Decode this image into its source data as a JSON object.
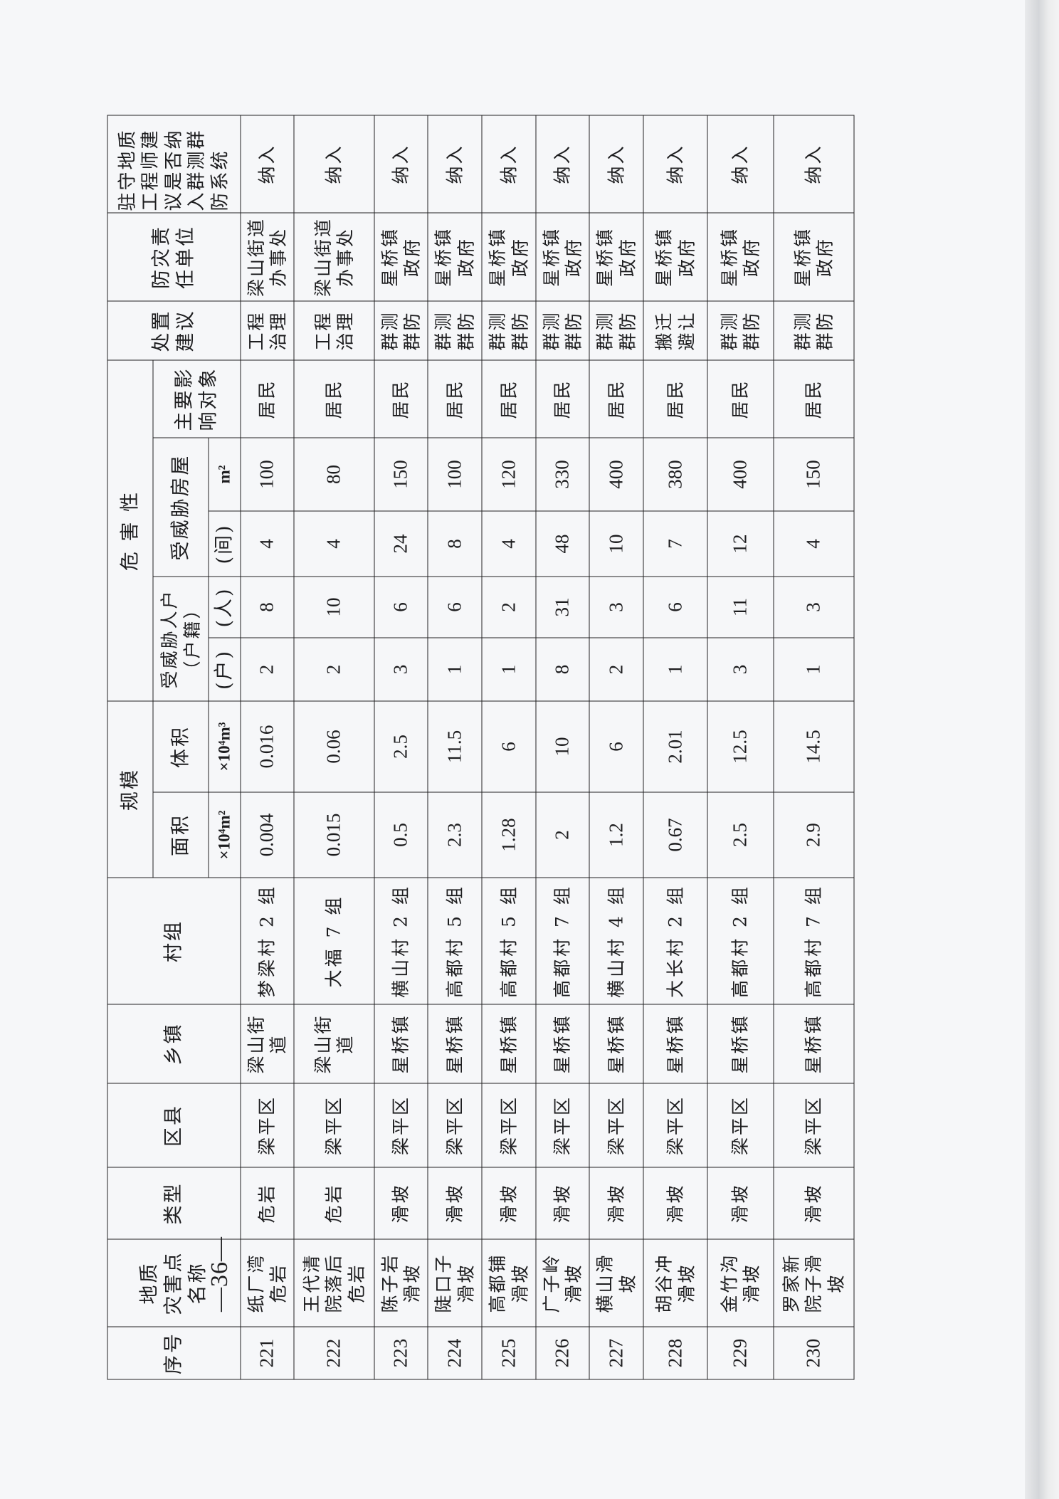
{
  "header": {
    "seq": "序号",
    "name": "地质\n灾害点\n名称",
    "type": "类型",
    "county": "区县",
    "town": "乡镇",
    "village": "村组",
    "scale": "规模",
    "area": "面积",
    "volume": "体积",
    "area_unit": "×10⁴m²",
    "volume_unit": "×10⁴m³",
    "hazard": "危 害 性",
    "threat_people": "受威胁人户\n（户籍）",
    "households_unit": "(户)",
    "persons_unit": "(人)",
    "threat_houses": "受威胁房屋",
    "rooms_unit": "(间)",
    "house_area_unit": "m²",
    "affected": "主要影\n响对象",
    "measure": "处置\n建议",
    "responsible": "防灾责\n任单位",
    "included": "驻守地质\n工程师建\n议是否纳\n入群测群\n防系统"
  },
  "rows": [
    {
      "seq": "221",
      "name": "纸厂湾\n危岩",
      "type": "危岩",
      "county": "梁平区",
      "town": "梁山街\n道",
      "village": "梦梁村 2 组",
      "area": "0.004",
      "volume": "0.016",
      "households": "2",
      "persons": "8",
      "rooms": "4",
      "house_area": "100",
      "affected": "居民",
      "measure": "工程\n治理",
      "responsible": "梁山街道\n办事处",
      "included": "纳入"
    },
    {
      "seq": "222",
      "name": "王代清\n院落后\n危岩",
      "type": "危岩",
      "county": "梁平区",
      "town": "梁山街\n道",
      "village": "大福 7 组",
      "area": "0.015",
      "volume": "0.06",
      "households": "2",
      "persons": "10",
      "rooms": "4",
      "house_area": "80",
      "affected": "居民",
      "measure": "工程\n治理",
      "responsible": "梁山街道\n办事处",
      "included": "纳入"
    },
    {
      "seq": "223",
      "name": "陈子岩\n滑坡",
      "type": "滑坡",
      "county": "梁平区",
      "town": "星桥镇",
      "village": "横山村 2 组",
      "area": "0.5",
      "volume": "2.5",
      "households": "3",
      "persons": "6",
      "rooms": "24",
      "house_area": "150",
      "affected": "居民",
      "measure": "群测\n群防",
      "responsible": "星桥镇\n政府",
      "included": "纳入"
    },
    {
      "seq": "224",
      "name": "陡口子\n滑坡",
      "type": "滑坡",
      "county": "梁平区",
      "town": "星桥镇",
      "village": "高都村 5 组",
      "area": "2.3",
      "volume": "11.5",
      "households": "1",
      "persons": "6",
      "rooms": "8",
      "house_area": "100",
      "affected": "居民",
      "measure": "群测\n群防",
      "responsible": "星桥镇\n政府",
      "included": "纳入"
    },
    {
      "seq": "225",
      "name": "高都铺\n滑坡",
      "type": "滑坡",
      "county": "梁平区",
      "town": "星桥镇",
      "village": "高都村 5 组",
      "area": "1.28",
      "volume": "6",
      "households": "1",
      "persons": "2",
      "rooms": "4",
      "house_area": "120",
      "affected": "居民",
      "measure": "群测\n群防",
      "responsible": "星桥镇\n政府",
      "included": "纳入"
    },
    {
      "seq": "226",
      "name": "广子岭\n滑坡",
      "type": "滑坡",
      "county": "梁平区",
      "town": "星桥镇",
      "village": "高都村 7 组",
      "area": "2",
      "volume": "10",
      "households": "8",
      "persons": "31",
      "rooms": "48",
      "house_area": "330",
      "affected": "居民",
      "measure": "群测\n群防",
      "responsible": "星桥镇\n政府",
      "included": "纳入"
    },
    {
      "seq": "227",
      "name": "横山滑\n坡",
      "type": "滑坡",
      "county": "梁平区",
      "town": "星桥镇",
      "village": "横山村 4 组",
      "area": "1.2",
      "volume": "6",
      "households": "2",
      "persons": "3",
      "rooms": "10",
      "house_area": "400",
      "affected": "居民",
      "measure": "群测\n群防",
      "responsible": "星桥镇\n政府",
      "included": "纳入"
    },
    {
      "seq": "228",
      "name": "胡谷冲\n滑坡",
      "type": "滑坡",
      "county": "梁平区",
      "town": "星桥镇",
      "village": "大长村 2 组",
      "area": "0.67",
      "volume": "2.01",
      "households": "1",
      "persons": "6",
      "rooms": "7",
      "house_area": "380",
      "affected": "居民",
      "measure": "搬迁\n避让",
      "responsible": "星桥镇\n政府",
      "included": "纳入"
    },
    {
      "seq": "229",
      "name": "金竹沟\n滑坡",
      "type": "滑坡",
      "county": "梁平区",
      "town": "星桥镇",
      "village": "高都村 2 组",
      "area": "2.5",
      "volume": "12.5",
      "households": "3",
      "persons": "11",
      "rooms": "12",
      "house_area": "400",
      "affected": "居民",
      "measure": "群测\n群防",
      "responsible": "星桥镇\n政府",
      "included": "纳入"
    },
    {
      "seq": "230",
      "name": "罗家新\n院子滑\n坡",
      "type": "滑坡",
      "county": "梁平区",
      "town": "星桥镇",
      "village": "高都村 7 组",
      "area": "2.9",
      "volume": "14.5",
      "households": "1",
      "persons": "3",
      "rooms": "4",
      "house_area": "150",
      "affected": "居民",
      "measure": "群测\n群防",
      "responsible": "星桥镇\n政府",
      "included": "纳入"
    }
  ],
  "page_number": "—36—"
}
